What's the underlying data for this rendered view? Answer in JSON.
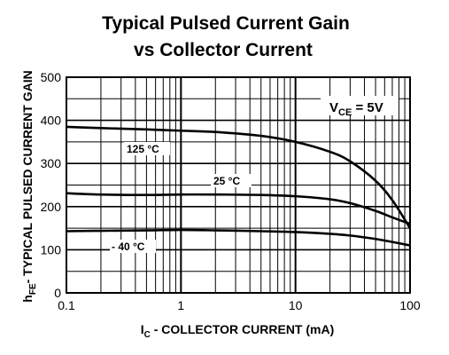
{
  "chart_data": {
    "type": "line",
    "title_line1": "Typical Pulsed Current Gain",
    "title_line2": "vs Collector Current",
    "xlabel_sym": "I",
    "xlabel_sub": "C",
    "xlabel_rest": " - COLLECTOR CURRENT  (mA)",
    "ylabel_sym": "h",
    "ylabel_sub": "FE",
    "ylabel_rest": "- TYPICAL  PULSED CURRENT GAIN",
    "xscale": "log",
    "xlim": [
      0.1,
      100
    ],
    "ylim": [
      0,
      500
    ],
    "xticks": [
      {
        "value": 0.1,
        "label": "0.1"
      },
      {
        "value": 1,
        "label": "1"
      },
      {
        "value": 10,
        "label": "10"
      },
      {
        "value": 100,
        "label": "100"
      }
    ],
    "yticks": [
      {
        "value": 0,
        "label": "0"
      },
      {
        "value": 100,
        "label": "100"
      },
      {
        "value": 200,
        "label": "200"
      },
      {
        "value": 300,
        "label": "300"
      },
      {
        "value": 400,
        "label": "400"
      },
      {
        "value": 500,
        "label": "500"
      }
    ],
    "grid": true,
    "annotation": {
      "sym": "V",
      "sub": "CE",
      "rest": " = 5V"
    },
    "series": [
      {
        "name": "125 °C",
        "x": [
          0.1,
          0.2,
          0.5,
          1,
          2,
          5,
          10,
          20,
          30,
          50,
          70,
          100
        ],
        "y": [
          385,
          382,
          379,
          376,
          373,
          364,
          350,
          327,
          305,
          260,
          215,
          150
        ]
      },
      {
        "name": "25 °C",
        "x": [
          0.1,
          0.2,
          0.5,
          1,
          2,
          5,
          10,
          20,
          30,
          50,
          70,
          100
        ],
        "y": [
          231,
          228,
          227,
          228,
          228,
          227,
          224,
          217,
          208,
          190,
          175,
          160
        ]
      },
      {
        "name": "- 40 °C",
        "x": [
          0.1,
          0.2,
          0.5,
          1,
          2,
          5,
          10,
          20,
          30,
          50,
          70,
          100
        ],
        "y": [
          143,
          144,
          145,
          146,
          145,
          143,
          141,
          137,
          133,
          125,
          118,
          110
        ]
      }
    ]
  }
}
